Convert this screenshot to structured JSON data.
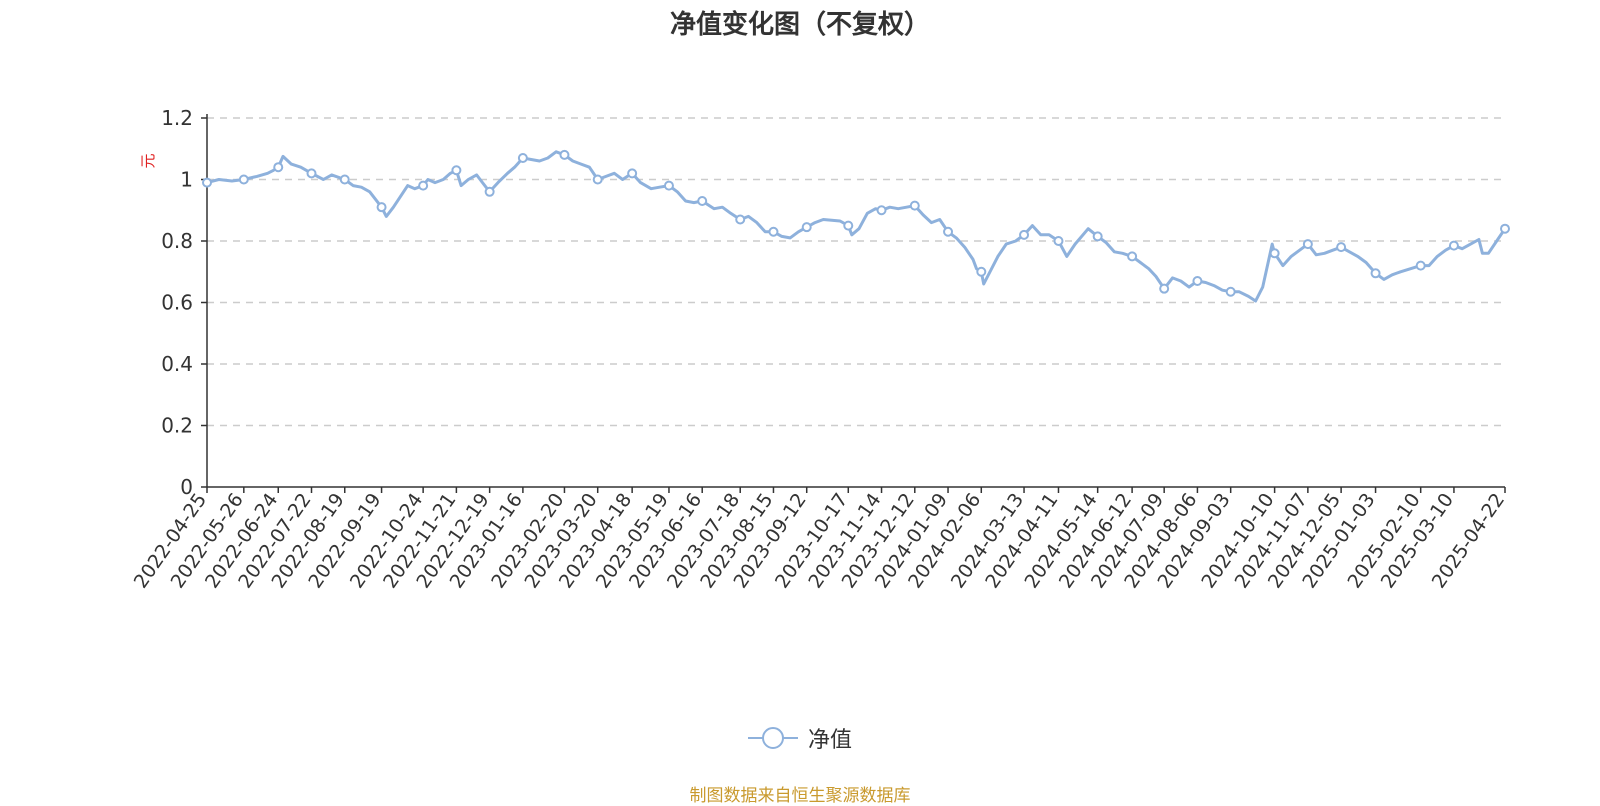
{
  "colors": {
    "line": "#8eb1dc",
    "grid": "#cccccc",
    "axis": "#333333",
    "unit": "#e02020",
    "source": "#c99a2e"
  },
  "chart_data": {
    "type": "line",
    "title": "净值变化图（不复权）",
    "ylabel": "元",
    "ylim": [
      0,
      1.2
    ],
    "yticks": [
      "0",
      "0.2",
      "0.4",
      "0.6",
      "0.8",
      "1",
      "1.2"
    ],
    "grid": true,
    "legend_position": "bottom-center",
    "x_range": [
      "2022-04-25",
      "2025-04-22"
    ],
    "xticks": [
      "2022-04-25",
      "2022-05-26",
      "2022-06-24",
      "2022-07-22",
      "2022-08-19",
      "2022-09-19",
      "2022-10-24",
      "2022-11-21",
      "2022-12-19",
      "2023-01-16",
      "2023-02-20",
      "2023-03-20",
      "2023-04-18",
      "2023-05-19",
      "2023-06-16",
      "2023-07-18",
      "2023-08-15",
      "2023-09-12",
      "2023-10-17",
      "2023-11-14",
      "2023-12-12",
      "2024-01-09",
      "2024-02-06",
      "2024-03-13",
      "2024-04-11",
      "2024-05-14",
      "2024-06-12",
      "2024-07-09",
      "2024-08-06",
      "2024-09-03",
      "2024-10-10",
      "2024-11-07",
      "2024-12-05",
      "2025-01-03",
      "2025-02-10",
      "2025-03-10",
      "2025-04-22"
    ],
    "series": [
      {
        "name": "净值",
        "x": [
          "2022-04-25",
          "2022-05-05",
          "2022-05-16",
          "2022-05-26",
          "2022-06-06",
          "2022-06-15",
          "2022-06-20",
          "2022-06-24",
          "2022-06-28",
          "2022-07-05",
          "2022-07-13",
          "2022-07-22",
          "2022-08-01",
          "2022-08-08",
          "2022-08-19",
          "2022-08-26",
          "2022-09-02",
          "2022-09-09",
          "2022-09-19",
          "2022-09-23",
          "2022-09-29",
          "2022-10-11",
          "2022-10-17",
          "2022-10-24",
          "2022-10-28",
          "2022-11-03",
          "2022-11-10",
          "2022-11-16",
          "2022-11-21",
          "2022-11-25",
          "2022-12-01",
          "2022-12-08",
          "2022-12-13",
          "2022-12-19",
          "2022-12-26",
          "2023-01-03",
          "2023-01-09",
          "2023-01-16",
          "2023-01-30",
          "2023-02-06",
          "2023-02-13",
          "2023-02-20",
          "2023-02-27",
          "2023-03-06",
          "2023-03-13",
          "2023-03-20",
          "2023-03-27",
          "2023-04-03",
          "2023-04-10",
          "2023-04-18",
          "2023-04-25",
          "2023-05-04",
          "2023-05-11",
          "2023-05-19",
          "2023-05-26",
          "2023-06-02",
          "2023-06-09",
          "2023-06-16",
          "2023-06-26",
          "2023-07-03",
          "2023-07-10",
          "2023-07-18",
          "2023-07-25",
          "2023-08-01",
          "2023-08-08",
          "2023-08-15",
          "2023-08-22",
          "2023-08-29",
          "2023-09-05",
          "2023-09-12",
          "2023-09-19",
          "2023-09-26",
          "2023-10-10",
          "2023-10-17",
          "2023-10-20",
          "2023-10-26",
          "2023-11-02",
          "2023-11-09",
          "2023-11-14",
          "2023-11-21",
          "2023-11-28",
          "2023-12-05",
          "2023-12-12",
          "2023-12-19",
          "2023-12-26",
          "2024-01-02",
          "2024-01-09",
          "2024-01-16",
          "2024-01-23",
          "2024-01-30",
          "2024-02-02",
          "2024-02-06",
          "2024-02-08",
          "2024-02-20",
          "2024-02-27",
          "2024-03-06",
          "2024-03-13",
          "2024-03-20",
          "2024-03-27",
          "2024-04-03",
          "2024-04-11",
          "2024-04-18",
          "2024-04-25",
          "2024-05-06",
          "2024-05-14",
          "2024-05-21",
          "2024-05-28",
          "2024-06-04",
          "2024-06-12",
          "2024-06-19",
          "2024-06-26",
          "2024-07-02",
          "2024-07-09",
          "2024-07-16",
          "2024-07-23",
          "2024-07-30",
          "2024-08-06",
          "2024-08-13",
          "2024-08-20",
          "2024-08-27",
          "2024-09-03",
          "2024-09-10",
          "2024-09-18",
          "2024-09-24",
          "2024-09-30",
          "2024-10-08",
          "2024-10-10",
          "2024-10-17",
          "2024-10-24",
          "2024-10-31",
          "2024-11-07",
          "2024-11-14",
          "2024-11-21",
          "2024-11-28",
          "2024-12-05",
          "2024-12-12",
          "2024-12-19",
          "2024-12-26",
          "2025-01-03",
          "2025-01-10",
          "2025-01-17",
          "2025-01-24",
          "2025-02-10",
          "2025-02-17",
          "2025-02-24",
          "2025-03-03",
          "2025-03-10",
          "2025-03-17",
          "2025-03-24",
          "2025-03-31",
          "2025-04-03",
          "2025-04-08",
          "2025-04-15",
          "2025-04-22"
        ],
        "values": [
          0.99,
          1.0,
          0.995,
          1.0,
          1.01,
          1.02,
          1.03,
          1.04,
          1.075,
          1.05,
          1.04,
          1.02,
          1.0,
          1.015,
          1.0,
          0.98,
          0.975,
          0.96,
          0.91,
          0.88,
          0.91,
          0.98,
          0.97,
          0.98,
          1.0,
          0.99,
          1.0,
          1.02,
          1.03,
          0.98,
          1.0,
          1.015,
          0.99,
          0.96,
          0.99,
          1.02,
          1.04,
          1.07,
          1.06,
          1.07,
          1.09,
          1.08,
          1.06,
          1.05,
          1.04,
          1.0,
          1.01,
          1.02,
          1.0,
          1.02,
          0.99,
          0.97,
          0.975,
          0.98,
          0.96,
          0.93,
          0.925,
          0.93,
          0.905,
          0.91,
          0.89,
          0.87,
          0.88,
          0.86,
          0.83,
          0.83,
          0.815,
          0.81,
          0.83,
          0.845,
          0.86,
          0.87,
          0.865,
          0.85,
          0.82,
          0.84,
          0.89,
          0.905,
          0.9,
          0.91,
          0.905,
          0.91,
          0.915,
          0.885,
          0.86,
          0.87,
          0.83,
          0.81,
          0.78,
          0.74,
          0.71,
          0.7,
          0.66,
          0.75,
          0.79,
          0.8,
          0.82,
          0.85,
          0.82,
          0.82,
          0.8,
          0.75,
          0.79,
          0.84,
          0.815,
          0.795,
          0.765,
          0.76,
          0.75,
          0.73,
          0.71,
          0.685,
          0.645,
          0.68,
          0.67,
          0.65,
          0.67,
          0.665,
          0.655,
          0.64,
          0.635,
          0.635,
          0.62,
          0.605,
          0.65,
          0.79,
          0.76,
          0.72,
          0.75,
          0.77,
          0.79,
          0.755,
          0.76,
          0.77,
          0.78,
          0.765,
          0.75,
          0.73,
          0.695,
          0.675,
          0.69,
          0.7,
          0.72,
          0.72,
          0.75,
          0.77,
          0.785,
          0.775,
          0.79,
          0.805,
          0.76,
          0.76,
          0.8,
          0.84
        ]
      }
    ],
    "markers_every_ticks": true
  },
  "legend": {
    "label": "净值"
  },
  "source_note": "制图数据来自恒生聚源数据库"
}
